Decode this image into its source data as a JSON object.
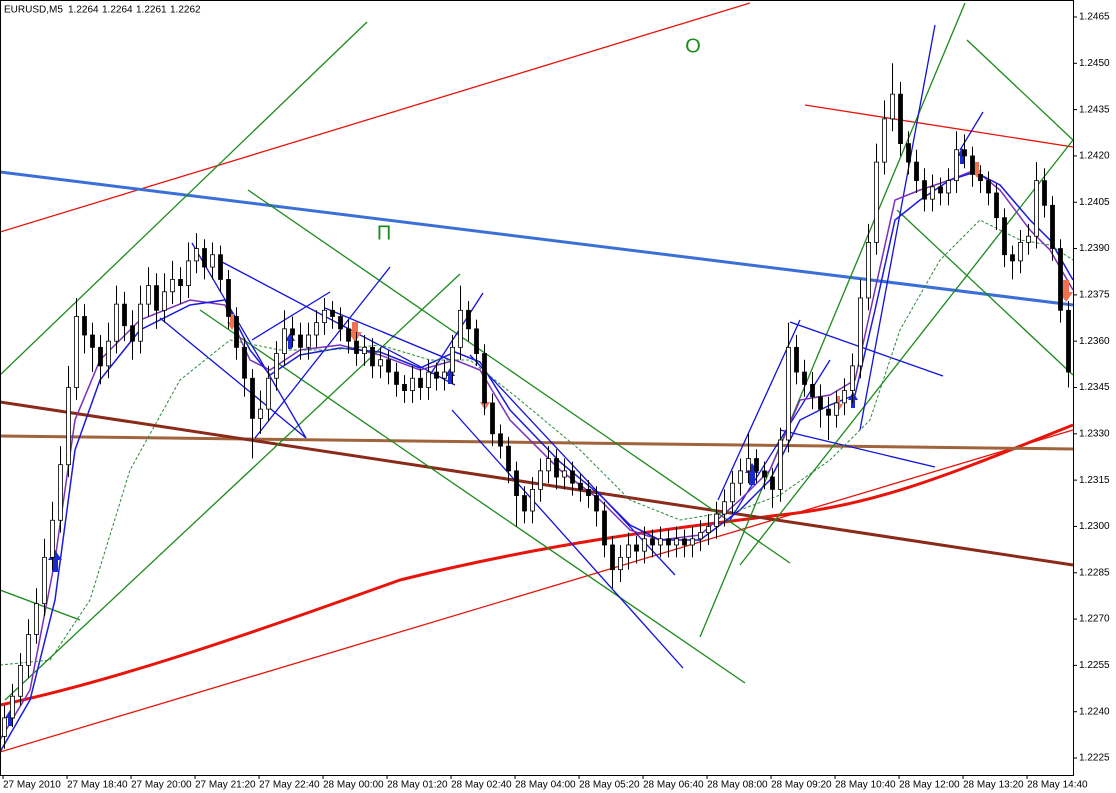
{
  "chart_data": {
    "type": "candlestick",
    "title": "EURUSD,M5",
    "ohlc": [
      1.2264,
      1.2264,
      1.2261,
      1.2262
    ],
    "annotations": [
      "П",
      "O"
    ],
    "ylim": [
      1.22195,
      1.24705
    ],
    "yticks": [
      1.2465,
      {
        "value": 1.245,
        "label": "1.2450"
      },
      1.2435,
      {
        "value": 1.242,
        "label": "1.2420"
      },
      1.2405,
      {
        "value": 1.239,
        "label": "1.2390"
      },
      1.2375,
      {
        "value": 1.236,
        "label": "1.2360"
      },
      1.2345,
      {
        "value": 1.233,
        "label": "1.2330"
      },
      1.2315,
      {
        "value": 1.23,
        "label": "1.2300"
      },
      1.2285,
      {
        "value": 1.227,
        "label": "1.2270"
      },
      1.2255,
      {
        "value": 1.224,
        "label": "1.2240"
      },
      1.2225
    ],
    "x_labels": [
      "27 May 2010",
      "27 May 18:40",
      "27 May 20:00",
      "27 May 21:20",
      "27 May 22:40",
      "28 May 00:00",
      "28 May 01:20",
      "28 May 02:40",
      "28 May 04:00",
      "28 May 05:20",
      "28 May 06:40",
      "28 May 08:00",
      "28 May 09:20",
      "28 May 10:40",
      "28 May 12:00",
      "28 May 13:20",
      "28 May 14:40"
    ],
    "candles": [
      [
        1.2232,
        1.2242,
        1.2228,
        1.2238
      ],
      [
        1.2238,
        1.2249,
        1.2235,
        1.2245
      ],
      [
        1.2245,
        1.2259,
        1.2242,
        1.2255
      ],
      [
        1.2255,
        1.227,
        1.2251,
        1.2265
      ],
      [
        1.2265,
        1.228,
        1.2262,
        1.2275
      ],
      [
        1.2275,
        1.2296,
        1.2271,
        1.229
      ],
      [
        1.229,
        1.2308,
        1.2286,
        1.2302
      ],
      [
        1.2302,
        1.2326,
        1.2298,
        1.232
      ],
      [
        1.232,
        1.2352,
        1.2316,
        1.2345
      ],
      [
        1.2345,
        1.2374,
        1.2341,
        1.2368
      ],
      [
        1.2368,
        1.2372,
        1.2356,
        1.2362
      ],
      [
        1.2362,
        1.2366,
        1.235,
        1.2358
      ],
      [
        1.2358,
        1.2362,
        1.2346,
        1.2352
      ],
      [
        1.2352,
        1.2366,
        1.2348,
        1.236
      ],
      [
        1.236,
        1.2378,
        1.2356,
        1.2372
      ],
      [
        1.2372,
        1.2376,
        1.236,
        1.2365
      ],
      [
        1.2365,
        1.237,
        1.2354,
        1.236
      ],
      [
        1.236,
        1.2378,
        1.2356,
        1.2372
      ],
      [
        1.2372,
        1.2384,
        1.2368,
        1.2378
      ],
      [
        1.2378,
        1.2382,
        1.2364,
        1.237
      ],
      [
        1.237,
        1.2382,
        1.2366,
        1.2376
      ],
      [
        1.2376,
        1.2386,
        1.2372,
        1.238
      ],
      [
        1.238,
        1.2384,
        1.2372,
        1.2378
      ],
      [
        1.2378,
        1.2392,
        1.2374,
        1.2386
      ],
      [
        1.2386,
        1.2395,
        1.2382,
        1.239
      ],
      [
        1.239,
        1.2393,
        1.238,
        1.2384
      ],
      [
        1.2384,
        1.2392,
        1.238,
        1.2388
      ],
      [
        1.2388,
        1.2391,
        1.2376,
        1.238
      ],
      [
        1.238,
        1.2383,
        1.2364,
        1.2368
      ],
      [
        1.2368,
        1.2371,
        1.2354,
        1.2358
      ],
      [
        1.2358,
        1.2361,
        1.2342,
        1.2348
      ],
      [
        1.2348,
        1.2351,
        1.2322,
        1.2335
      ],
      [
        1.2335,
        1.2344,
        1.233,
        1.2338
      ],
      [
        1.2338,
        1.2352,
        1.2334,
        1.2348
      ],
      [
        1.2348,
        1.236,
        1.2344,
        1.2356
      ],
      [
        1.2356,
        1.237,
        1.2352,
        1.2364
      ],
      [
        1.2364,
        1.2368,
        1.2358,
        1.2362
      ],
      [
        1.2362,
        1.2366,
        1.2354,
        1.2358
      ],
      [
        1.2358,
        1.2366,
        1.2354,
        1.2362
      ],
      [
        1.2362,
        1.237,
        1.2358,
        1.2366
      ],
      [
        1.2366,
        1.2374,
        1.2362,
        1.237
      ],
      [
        1.237,
        1.2373,
        1.2364,
        1.2368
      ],
      [
        1.2368,
        1.2371,
        1.236,
        1.2364
      ],
      [
        1.2364,
        1.2367,
        1.2356,
        1.236
      ],
      [
        1.236,
        1.2363,
        1.2352,
        1.2356
      ],
      [
        1.2356,
        1.2362,
        1.2352,
        1.2358
      ],
      [
        1.2358,
        1.2361,
        1.2348,
        1.2352
      ],
      [
        1.2352,
        1.2358,
        1.2348,
        1.2354
      ],
      [
        1.2354,
        1.2357,
        1.2346,
        1.235
      ],
      [
        1.235,
        1.2353,
        1.2342,
        1.2346
      ],
      [
        1.2346,
        1.2349,
        1.234,
        1.2344
      ],
      [
        1.2344,
        1.2352,
        1.234,
        1.2348
      ],
      [
        1.2348,
        1.2351,
        1.2341,
        1.2345
      ],
      [
        1.2345,
        1.2354,
        1.2341,
        1.235
      ],
      [
        1.235,
        1.2353,
        1.2344,
        1.2348
      ],
      [
        1.2348,
        1.2354,
        1.2344,
        1.235
      ],
      [
        1.235,
        1.2362,
        1.2346,
        1.2358
      ],
      [
        1.2358,
        1.2378,
        1.2354,
        1.237
      ],
      [
        1.237,
        1.2373,
        1.236,
        1.2364
      ],
      [
        1.2364,
        1.2367,
        1.2352,
        1.2356
      ],
      [
        1.2356,
        1.2359,
        1.2336,
        1.234
      ],
      [
        1.234,
        1.2343,
        1.2326,
        1.233
      ],
      [
        1.233,
        1.2333,
        1.2322,
        1.2326
      ],
      [
        1.2326,
        1.2329,
        1.2314,
        1.2318
      ],
      [
        1.2318,
        1.2321,
        1.23,
        1.231
      ],
      [
        1.231,
        1.2313,
        1.2301,
        1.2305
      ],
      [
        1.2305,
        1.2316,
        1.2301,
        1.2312
      ],
      [
        1.2312,
        1.2322,
        1.2308,
        1.2318
      ],
      [
        1.2318,
        1.2326,
        1.2314,
        1.2322
      ],
      [
        1.2322,
        1.2325,
        1.2312,
        1.2316
      ],
      [
        1.2316,
        1.2322,
        1.2312,
        1.2318
      ],
      [
        1.2318,
        1.2321,
        1.231,
        1.2314
      ],
      [
        1.2314,
        1.2317,
        1.2308,
        1.2312
      ],
      [
        1.2312,
        1.2315,
        1.2306,
        1.231
      ],
      [
        1.231,
        1.2313,
        1.23,
        1.2305
      ],
      [
        1.2305,
        1.2308,
        1.229,
        1.2294
      ],
      [
        1.2294,
        1.2297,
        1.228,
        1.2286
      ],
      [
        1.2286,
        1.2294,
        1.2282,
        1.229
      ],
      [
        1.229,
        1.2298,
        1.2286,
        1.2294
      ],
      [
        1.2294,
        1.2297,
        1.2288,
        1.2292
      ],
      [
        1.2292,
        1.23,
        1.2288,
        1.2296
      ],
      [
        1.2296,
        1.2299,
        1.229,
        1.2294
      ],
      [
        1.2294,
        1.23,
        1.229,
        1.2296
      ],
      [
        1.2296,
        1.2299,
        1.229,
        1.2294
      ],
      [
        1.2294,
        1.23,
        1.229,
        1.2296
      ],
      [
        1.2296,
        1.2299,
        1.229,
        1.2294
      ],
      [
        1.2294,
        1.23,
        1.229,
        1.2296
      ],
      [
        1.2296,
        1.2302,
        1.2292,
        1.2298
      ],
      [
        1.2298,
        1.2304,
        1.2294,
        1.23
      ],
      [
        1.23,
        1.2308,
        1.2296,
        1.2304
      ],
      [
        1.2304,
        1.2312,
        1.23,
        1.2308
      ],
      [
        1.2308,
        1.2318,
        1.2304,
        1.2314
      ],
      [
        1.2314,
        1.2322,
        1.231,
        1.2318
      ],
      [
        1.2318,
        1.233,
        1.2314,
        1.2322
      ],
      [
        1.2322,
        1.2325,
        1.2314,
        1.2318
      ],
      [
        1.2318,
        1.2321,
        1.2312,
        1.2316
      ],
      [
        1.2316,
        1.2319,
        1.2306,
        1.2312
      ],
      [
        1.2312,
        1.2332,
        1.2308,
        1.2328
      ],
      [
        1.2328,
        1.2366,
        1.2324,
        1.2358
      ],
      [
        1.2358,
        1.2362,
        1.2346,
        1.235
      ],
      [
        1.235,
        1.2354,
        1.2342,
        1.2346
      ],
      [
        1.2346,
        1.235,
        1.2338,
        1.2342
      ],
      [
        1.2342,
        1.2346,
        1.2332,
        1.2338
      ],
      [
        1.2338,
        1.2342,
        1.2328,
        1.2336
      ],
      [
        1.2336,
        1.2344,
        1.2332,
        1.234
      ],
      [
        1.234,
        1.2348,
        1.2336,
        1.2344
      ],
      [
        1.2344,
        1.2356,
        1.234,
        1.2352
      ],
      [
        1.2352,
        1.238,
        1.2348,
        1.2374
      ],
      [
        1.2374,
        1.2398,
        1.237,
        1.2392
      ],
      [
        1.2392,
        1.2424,
        1.2388,
        1.2418
      ],
      [
        1.2418,
        1.2438,
        1.2414,
        1.2432
      ],
      [
        1.2432,
        1.245,
        1.2428,
        1.244
      ],
      [
        1.244,
        1.2444,
        1.242,
        1.2424
      ],
      [
        1.2424,
        1.2428,
        1.2414,
        1.2418
      ],
      [
        1.2418,
        1.2422,
        1.2408,
        1.2412
      ],
      [
        1.2412,
        1.2416,
        1.2402,
        1.2406
      ],
      [
        1.2406,
        1.2414,
        1.2402,
        1.241
      ],
      [
        1.241,
        1.2413,
        1.2404,
        1.2408
      ],
      [
        1.2408,
        1.2416,
        1.2404,
        1.2412
      ],
      [
        1.2412,
        1.2428,
        1.2408,
        1.2422
      ],
      [
        1.2422,
        1.2427,
        1.2416,
        1.242
      ],
      [
        1.242,
        1.2423,
        1.241,
        1.2414
      ],
      [
        1.2414,
        1.2417,
        1.2408,
        1.2412
      ],
      [
        1.2412,
        1.2415,
        1.2404,
        1.2408
      ],
      [
        1.2408,
        1.2411,
        1.2396,
        1.24
      ],
      [
        1.24,
        1.2403,
        1.2384,
        1.2388
      ],
      [
        1.2388,
        1.2391,
        1.238,
        1.2386
      ],
      [
        1.2386,
        1.2396,
        1.2382,
        1.2392
      ],
      [
        1.2392,
        1.2398,
        1.2388,
        1.2394
      ],
      [
        1.2394,
        1.2418,
        1.239,
        1.2412
      ],
      [
        1.2412,
        1.2416,
        1.24,
        1.2404
      ],
      [
        1.2404,
        1.2407,
        1.2386,
        1.239
      ],
      [
        1.239,
        1.2393,
        1.2366,
        1.237
      ],
      [
        1.237,
        1.2373,
        1.2345,
        1.235
      ]
    ]
  }
}
